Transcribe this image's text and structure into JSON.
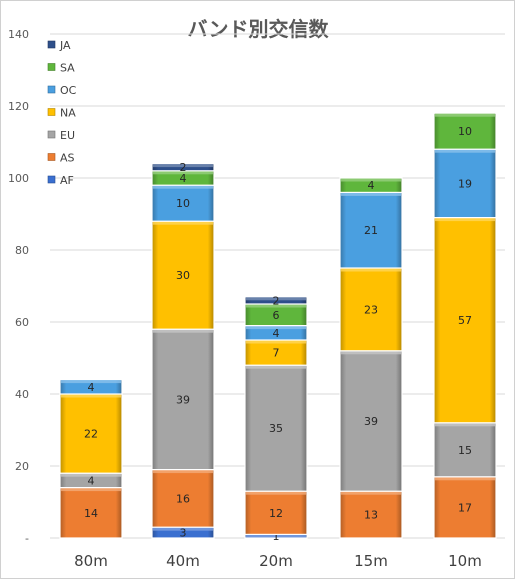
{
  "chart_data": {
    "type": "bar",
    "stacked": true,
    "title": "バンド別交信数",
    "xlabel": "",
    "ylabel": "",
    "ylim": [
      0,
      140
    ],
    "yticks": [
      0,
      20,
      40,
      60,
      80,
      100,
      120,
      140
    ],
    "ytick_labels": [
      "-",
      "20",
      "40",
      "60",
      "80",
      "100",
      "120",
      "140"
    ],
    "grid": true,
    "legend_position": "top-left",
    "categories": [
      "80m",
      "40m",
      "20m",
      "15m",
      "10m"
    ],
    "series": [
      {
        "name": "AF",
        "color": "#3a6fd0",
        "values": [
          0,
          3,
          1,
          0,
          0
        ]
      },
      {
        "name": "AS",
        "color": "#ed7d31",
        "values": [
          14,
          16,
          12,
          13,
          17
        ]
      },
      {
        "name": "EU",
        "color": "#a5a5a5",
        "values": [
          4,
          39,
          35,
          39,
          15
        ]
      },
      {
        "name": "NA",
        "color": "#ffc000",
        "values": [
          22,
          30,
          7,
          23,
          57
        ]
      },
      {
        "name": "OC",
        "color": "#4a9fe0",
        "values": [
          4,
          10,
          4,
          21,
          19
        ]
      },
      {
        "name": "SA",
        "color": "#5fb63c",
        "values": [
          0,
          4,
          6,
          4,
          10
        ]
      },
      {
        "name": "JA",
        "color": "#2e4f8a",
        "values": [
          0,
          2,
          2,
          0,
          0
        ]
      }
    ]
  }
}
